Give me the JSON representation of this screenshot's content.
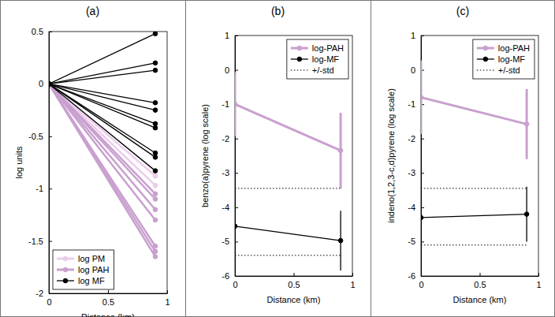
{
  "chart_data": [
    {
      "type": "line",
      "title": "(a)",
      "x_label": "Distance (km)",
      "y_label": "log units",
      "xlim": [
        0,
        1
      ],
      "xticks": [
        0,
        0.5,
        1
      ],
      "ylim": [
        -2,
        0.5
      ],
      "yticks": [
        -2,
        -1.5,
        -1,
        -0.5,
        0,
        0.5
      ],
      "legend": "lower left",
      "series": [
        {
          "name": "log PM",
          "color": "#ebcdeb",
          "marker": "circle",
          "x": [
            0,
            0.9
          ],
          "values": [
            [
              0,
              -0.88
            ],
            [
              0,
              -0.97
            ]
          ]
        },
        {
          "name": "log PAH",
          "color": "#c9a0cf",
          "marker": "circle",
          "x": [
            0,
            0.9
          ],
          "values": [
            [
              0,
              -1.05
            ],
            [
              0,
              -1.1
            ],
            [
              0,
              -1.2
            ],
            [
              0,
              -1.3
            ],
            [
              0,
              -1.55
            ],
            [
              0,
              -1.6
            ],
            [
              0,
              -1.65
            ]
          ]
        },
        {
          "name": "log MF",
          "color": "#000000",
          "marker": "circle",
          "x": [
            0,
            0.9
          ],
          "values": [
            [
              0,
              0.48
            ],
            [
              0,
              0.2
            ],
            [
              0,
              0.13
            ],
            [
              0,
              -0.18
            ],
            [
              0,
              -0.25
            ],
            [
              0,
              -0.38
            ],
            [
              0,
              -0.42
            ],
            [
              0,
              -0.66
            ],
            [
              0,
              -0.7
            ],
            [
              0,
              -0.83
            ]
          ]
        }
      ]
    },
    {
      "type": "line",
      "title": "(b)",
      "x_label": "Distance (km)",
      "y_label": "benzo(a)pyrene (log scale)",
      "xlim": [
        0,
        1
      ],
      "xticks": [
        0,
        0.5,
        1
      ],
      "ylim": [
        -6,
        1
      ],
      "yticks": [
        -6,
        -5,
        -4,
        -3,
        -2,
        -1,
        0,
        1
      ],
      "legend": "upper right",
      "series": [
        {
          "name": "log-PAH",
          "color": "#c9a0cf",
          "marker": "circle",
          "x": [
            0,
            0.9
          ],
          "values": [
            -1.0,
            -2.35
          ],
          "error": [
            0.93,
            1.1
          ]
        },
        {
          "name": "log-MF",
          "color": "#000000",
          "marker": "circle",
          "x": [
            0,
            0.9
          ],
          "values": [
            -4.55,
            -4.97
          ],
          "error": [
            0.72,
            0.87
          ]
        },
        {
          "name": "+/-std",
          "color": "#000000",
          "line_style": "dotted",
          "x": [
            0,
            0.9
          ],
          "upper": [
            -3.45,
            -3.45
          ],
          "lower": [
            -5.4,
            -5.4
          ]
        }
      ]
    },
    {
      "type": "line",
      "title": "(c)",
      "x_label": "Distance (km)",
      "y_label": "indeno(1,2,3-c,d)pyrene (log scale)",
      "xlim": [
        0,
        1
      ],
      "xticks": [
        0,
        0.5,
        1
      ],
      "ylim": [
        -6,
        1
      ],
      "yticks": [
        -6,
        -5,
        -4,
        -3,
        -2,
        -1,
        0,
        1
      ],
      "legend": "upper right",
      "series": [
        {
          "name": "log-PAH",
          "color": "#c9a0cf",
          "marker": "circle",
          "x": [
            0,
            0.9
          ],
          "values": [
            -0.8,
            -1.58
          ],
          "error": [
            1.07,
            1.02
          ]
        },
        {
          "name": "log-MF",
          "color": "#000000",
          "marker": "circle",
          "x": [
            0,
            0.9
          ],
          "values": [
            -4.3,
            -4.2
          ],
          "error": [
            0.65,
            0.8
          ]
        },
        {
          "name": "+/-std",
          "color": "#000000",
          "line_style": "dotted",
          "x": [
            0,
            0.9
          ],
          "upper": [
            -3.45,
            -3.45
          ],
          "lower": [
            -5.1,
            -5.1
          ]
        }
      ]
    }
  ]
}
